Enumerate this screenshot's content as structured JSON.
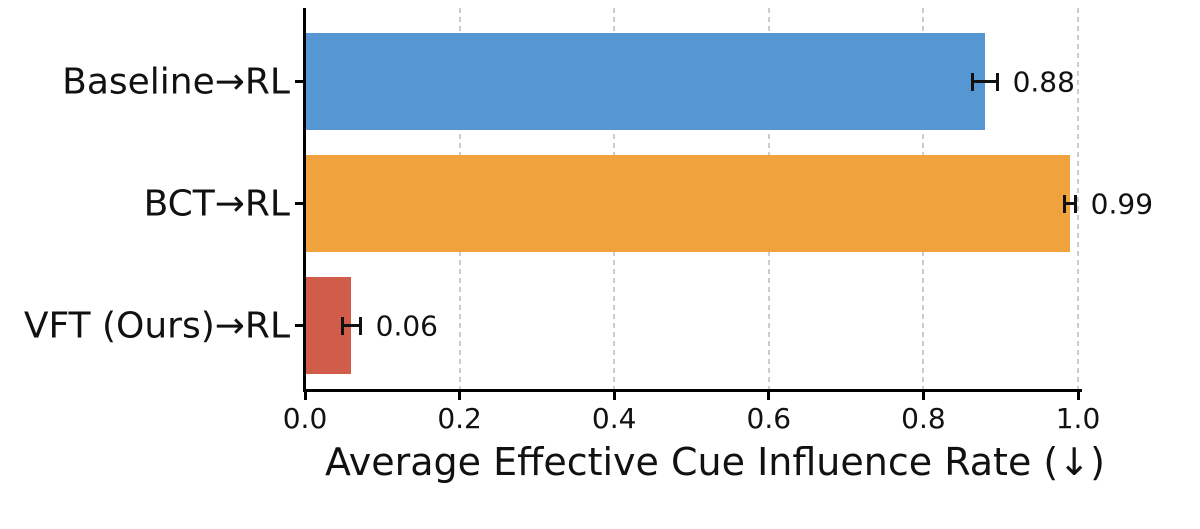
{
  "chart_data": {
    "type": "bar",
    "orientation": "horizontal",
    "title": "",
    "xlabel": "Average Effective Cue Influence Rate (↓)",
    "ylabel": "",
    "categories": [
      "Baseline→RL",
      "BCT→RL",
      "VFT (Ours)→RL"
    ],
    "values": [
      0.88,
      0.99,
      0.06
    ],
    "errors": [
      0.016,
      0.007,
      0.012
    ],
    "value_labels": [
      "0.88",
      "0.99",
      "0.06"
    ],
    "bar_colors": [
      "#5596D3",
      "#F0A23C",
      "#D15C4A"
    ],
    "xlim": [
      0.0,
      1.0
    ],
    "x_ticks": [
      0.0,
      0.2,
      0.4,
      0.6,
      0.8,
      1.0
    ],
    "x_tick_labels": [
      "0.0",
      "0.2",
      "0.4",
      "0.6",
      "0.8",
      "1.0"
    ],
    "grid": {
      "axis": "x",
      "style": "dashed",
      "color": "#CDCDCD"
    },
    "legend": "none",
    "error_bar_color": "#111111",
    "text_color": "#111111"
  }
}
